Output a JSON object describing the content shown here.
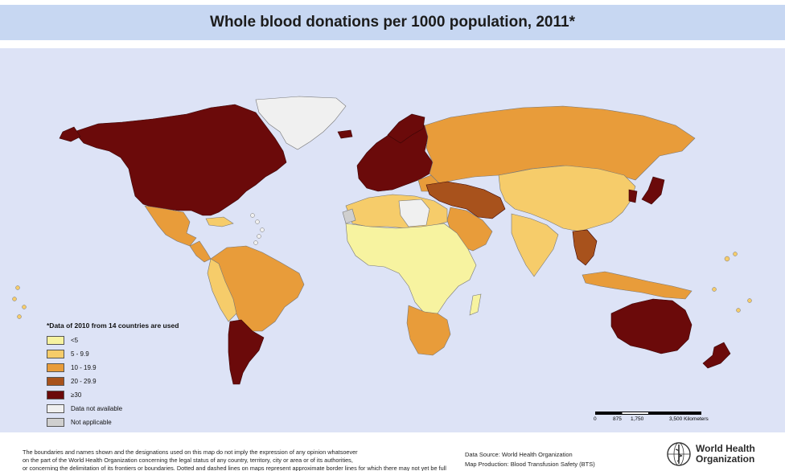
{
  "title": "Whole blood donations per 1000 population, 2011*",
  "legend": {
    "note": "*Data of 2010 from 14 countries are used",
    "items": [
      {
        "label": "<5",
        "color": "#f7f3a0"
      },
      {
        "label": "5 - 9.9",
        "color": "#f6cc6a"
      },
      {
        "label": "10 - 19.9",
        "color": "#e89c3a"
      },
      {
        "label": "20 - 29.9",
        "color": "#a8521c"
      },
      {
        "label": "≥30",
        "color": "#6b0a0a"
      },
      {
        "label": "Data not available",
        "color": "#f0f0f0"
      },
      {
        "label": "Not applicable",
        "color": "#cfcfcf"
      }
    ]
  },
  "scalebar": {
    "ticks": [
      "0",
      "875",
      "1,750",
      "3,500 Kilometers"
    ]
  },
  "footer": {
    "disclaimer_line1": "The boundaries and names shown and the designations used on this map do not imply the expression of any opinion whatsoever",
    "disclaimer_line2": "on the part of the World Health Organization concerning the legal status of any country, territory, city or area or of its authorities,",
    "disclaimer_line3": "or concerning the delimitation of its frontiers or boundaries. Dotted and dashed lines on maps represent approximate border lines for which there may not yet be full agreement.",
    "source_line1": "Data Source: World Health Organization",
    "source_line2": "Map Production: Blood Transfusion Safety (BTS)"
  },
  "logo": {
    "line1": "World Health",
    "line2": "Organization"
  },
  "colors": {
    "ocean": "#dde3f6",
    "title_bar": "#c7d7f2"
  }
}
